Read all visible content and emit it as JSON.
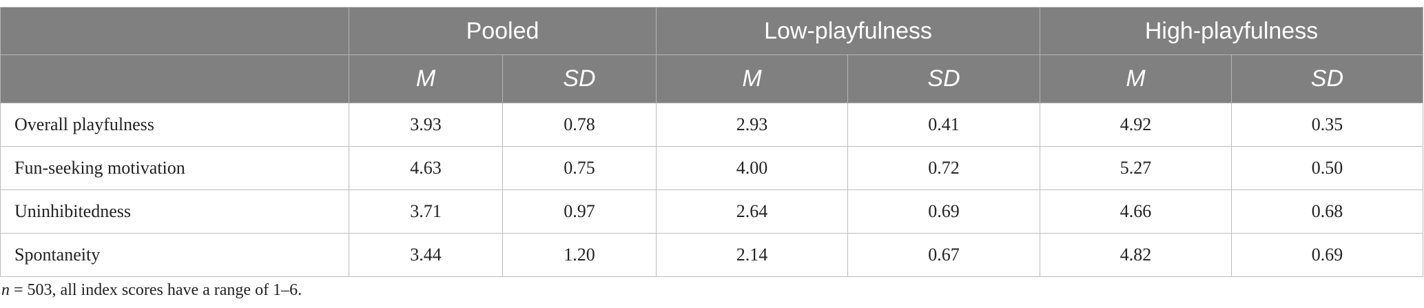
{
  "table": {
    "groups": [
      "Pooled",
      "Low-playfulness",
      "High-playfulness"
    ],
    "subheaders": [
      "M",
      "SD",
      "M",
      "SD",
      "M",
      "SD"
    ],
    "rows": [
      [
        "Overall playfulness",
        "3.93",
        "0.78",
        "2.93",
        "0.41",
        "4.92",
        "0.35"
      ],
      [
        "Fun-seeking motivation",
        "4.63",
        "0.75",
        "4.00",
        "0.72",
        "5.27",
        "0.50"
      ],
      [
        "Uninhibitedness",
        "3.71",
        "0.97",
        "2.64",
        "0.69",
        "4.66",
        "0.68"
      ],
      [
        "Spontaneity",
        "3.44",
        "1.20",
        "2.14",
        "0.67",
        "4.82",
        "0.69"
      ]
    ]
  },
  "footnote": {
    "variable": "n",
    "text": " = 503, all index scores have a range of 1–6."
  }
}
